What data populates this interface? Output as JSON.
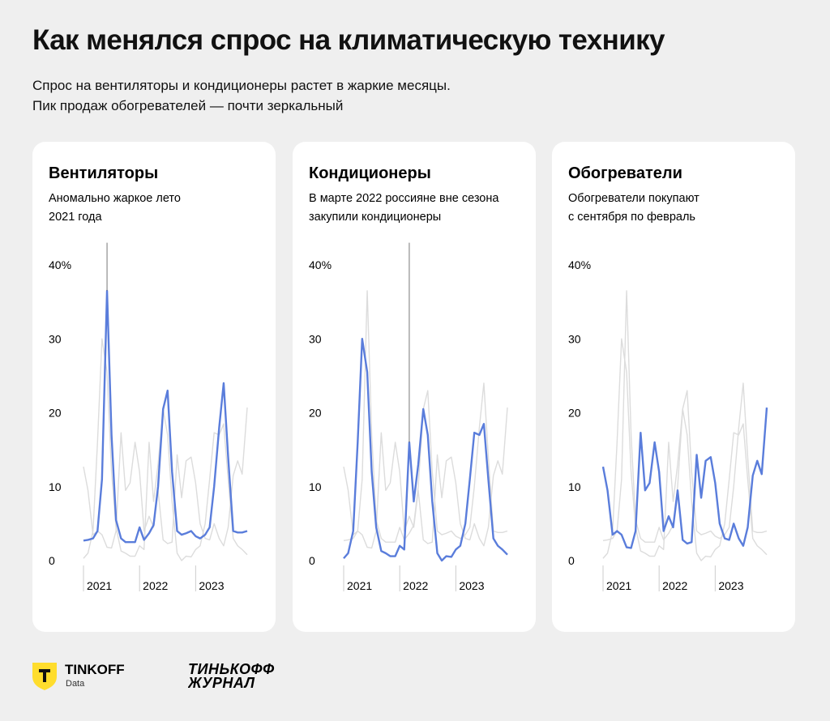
{
  "header": {
    "title": "Как менялся спрос на климатическую технику",
    "subtitle": [
      "Спрос на вентиляторы и кондиционеры растет в жаркие месяцы.",
      "Пик продаж обогревателей — почти зеркальный"
    ]
  },
  "footer": {
    "brand": "TINKOFF",
    "brand_sub": "Data",
    "journal": [
      "ТИНЬКОФФ",
      "ЖУРНАЛ"
    ]
  },
  "chart_data": [
    {
      "type": "line",
      "title": "Вентиляторы",
      "subtitle": [
        "Аномально жаркое лето",
        "2021 года"
      ],
      "x": [
        2021,
        2021.08,
        2021.17,
        2021.25,
        2021.33,
        2021.42,
        2021.5,
        2021.58,
        2021.67,
        2021.75,
        2021.83,
        2021.92,
        2022,
        2022.08,
        2022.17,
        2022.25,
        2022.33,
        2022.42,
        2022.5,
        2022.58,
        2022.67,
        2022.75,
        2022.83,
        2022.92,
        2023,
        2023.08,
        2023.17,
        2023.25,
        2023.33,
        2023.42,
        2023.5,
        2023.58,
        2023.67,
        2023.75,
        2023.83,
        2023.92
      ],
      "xlim": [
        2021,
        2023.92
      ],
      "xticks": [
        2021,
        2022,
        2023
      ],
      "ylim": [
        0,
        43
      ],
      "yticks": [
        0,
        10,
        20,
        30,
        {
          "value": 40,
          "label": "40%"
        }
      ],
      "series": [
        {
          "color": "#dcdcdc",
          "values": [
            0.3,
            1,
            4,
            16,
            30,
            25.5,
            12,
            4.5,
            1.3,
            1,
            0.6,
            0.6,
            2,
            1.5,
            16,
            8,
            13,
            20.5,
            17,
            8,
            1,
            0,
            0.6,
            0.5,
            1.5,
            2,
            5,
            11,
            17.3,
            17,
            18.5,
            11,
            3,
            2,
            1.5,
            0.8
          ]
        },
        {
          "color": "#dcdcdc",
          "values": [
            12.7,
            9.5,
            3.5,
            4,
            3.5,
            1.8,
            1.7,
            4,
            17.3,
            9.5,
            10.5,
            16,
            12,
            4,
            6,
            4.5,
            9.5,
            2.8,
            2.3,
            2.5,
            14.3,
            8.5,
            13.5,
            14,
            10.5,
            5,
            3,
            2.8,
            5,
            3,
            2,
            4.5,
            11.5,
            13.5,
            11.7,
            20.7
          ]
        },
        {
          "color": "#5a7ddb",
          "values": [
            2.7,
            2.8,
            3,
            4,
            11,
            36.5,
            17,
            5.5,
            3,
            2.5,
            2.5,
            2.5,
            4.5,
            2.8,
            3.7,
            4.8,
            10,
            20.5,
            23,
            12,
            4,
            3.5,
            3.7,
            4,
            3.3,
            3,
            3.5,
            4.5,
            10,
            18,
            24,
            14,
            4,
            3.8,
            3.8,
            4
          ]
        }
      ]
    },
    {
      "type": "line",
      "title": "Кондиционеры",
      "subtitle": [
        "В марте 2022 россияне вне сезона",
        "закупили кондиционеры"
      ],
      "x": [
        2021,
        2021.08,
        2021.17,
        2021.25,
        2021.33,
        2021.42,
        2021.5,
        2021.58,
        2021.67,
        2021.75,
        2021.83,
        2021.92,
        2022,
        2022.08,
        2022.17,
        2022.25,
        2022.33,
        2022.42,
        2022.5,
        2022.58,
        2022.67,
        2022.75,
        2022.83,
        2022.92,
        2023,
        2023.08,
        2023.17,
        2023.25,
        2023.33,
        2023.42,
        2023.5,
        2023.58,
        2023.67,
        2023.75,
        2023.83,
        2023.92
      ],
      "xlim": [
        2021,
        2023.92
      ],
      "xticks": [
        2021,
        2022,
        2023
      ],
      "ylim": [
        0,
        43
      ],
      "yticks": [
        0,
        10,
        20,
        30,
        {
          "value": 40,
          "label": "40%"
        }
      ],
      "series": [
        {
          "color": "#dcdcdc",
          "values": [
            2.7,
            2.8,
            3,
            4,
            11,
            36.5,
            17,
            5.5,
            3,
            2.5,
            2.5,
            2.5,
            4.5,
            2.8,
            3.7,
            4.8,
            10,
            20.5,
            23,
            12,
            4,
            3.5,
            3.7,
            4,
            3.3,
            3,
            3.5,
            4.5,
            10,
            18,
            24,
            14,
            4,
            3.8,
            3.8,
            4
          ]
        },
        {
          "color": "#dcdcdc",
          "values": [
            12.7,
            9.5,
            3.5,
            4,
            3.5,
            1.8,
            1.7,
            4,
            17.3,
            9.5,
            10.5,
            16,
            12,
            4,
            6,
            4.5,
            9.5,
            2.8,
            2.3,
            2.5,
            14.3,
            8.5,
            13.5,
            14,
            10.5,
            5,
            3,
            2.8,
            5,
            3,
            2,
            4.5,
            11.5,
            13.5,
            11.7,
            20.7
          ]
        },
        {
          "color": "#5a7ddb",
          "values": [
            0.3,
            1,
            4,
            16,
            30,
            25.5,
            12,
            4.5,
            1.3,
            1,
            0.6,
            0.6,
            2,
            1.5,
            16,
            8,
            13,
            20.5,
            17,
            8,
            1,
            0,
            0.6,
            0.5,
            1.5,
            2,
            5,
            11,
            17.3,
            17,
            18.5,
            11,
            3,
            2,
            1.5,
            0.8
          ]
        }
      ]
    },
    {
      "type": "line",
      "title": "Обогреватели",
      "subtitle": [
        "Обогреватели покупают",
        "с сентября по февраль"
      ],
      "x": [
        2021,
        2021.08,
        2021.17,
        2021.25,
        2021.33,
        2021.42,
        2021.5,
        2021.58,
        2021.67,
        2021.75,
        2021.83,
        2021.92,
        2022,
        2022.08,
        2022.17,
        2022.25,
        2022.33,
        2022.42,
        2022.5,
        2022.58,
        2022.67,
        2022.75,
        2022.83,
        2022.92,
        2023,
        2023.08,
        2023.17,
        2023.25,
        2023.33,
        2023.42,
        2023.5,
        2023.58,
        2023.67,
        2023.75,
        2023.83,
        2023.92
      ],
      "xlim": [
        2021,
        2023.92
      ],
      "xticks": [
        2021,
        2022,
        2023
      ],
      "ylim": [
        0,
        43
      ],
      "yticks": [
        0,
        10,
        20,
        30,
        {
          "value": 40,
          "label": "40%"
        }
      ],
      "series": [
        {
          "color": "#dcdcdc",
          "values": [
            2.7,
            2.8,
            3,
            4,
            11,
            36.5,
            17,
            5.5,
            3,
            2.5,
            2.5,
            2.5,
            4.5,
            2.8,
            3.7,
            4.8,
            10,
            20.5,
            23,
            12,
            4,
            3.5,
            3.7,
            4,
            3.3,
            3,
            3.5,
            4.5,
            10,
            18,
            24,
            14,
            4,
            3.8,
            3.8,
            4
          ]
        },
        {
          "color": "#dcdcdc",
          "values": [
            0.3,
            1,
            4,
            16,
            30,
            25.5,
            12,
            4.5,
            1.3,
            1,
            0.6,
            0.6,
            2,
            1.5,
            16,
            8,
            13,
            20.5,
            17,
            8,
            1,
            0,
            0.6,
            0.5,
            1.5,
            2,
            5,
            11,
            17.3,
            17,
            18.5,
            11,
            3,
            2,
            1.5,
            0.8
          ]
        },
        {
          "color": "#5a7ddb",
          "values": [
            12.7,
            9.5,
            3.5,
            4,
            3.5,
            1.8,
            1.7,
            4,
            17.3,
            9.5,
            10.5,
            16,
            12,
            4,
            6,
            4.5,
            9.5,
            2.8,
            2.3,
            2.5,
            14.3,
            8.5,
            13.5,
            14,
            10.5,
            5,
            3,
            2.8,
            5,
            3,
            2,
            4.5,
            11.5,
            13.5,
            11.7,
            20.7
          ]
        }
      ]
    }
  ]
}
